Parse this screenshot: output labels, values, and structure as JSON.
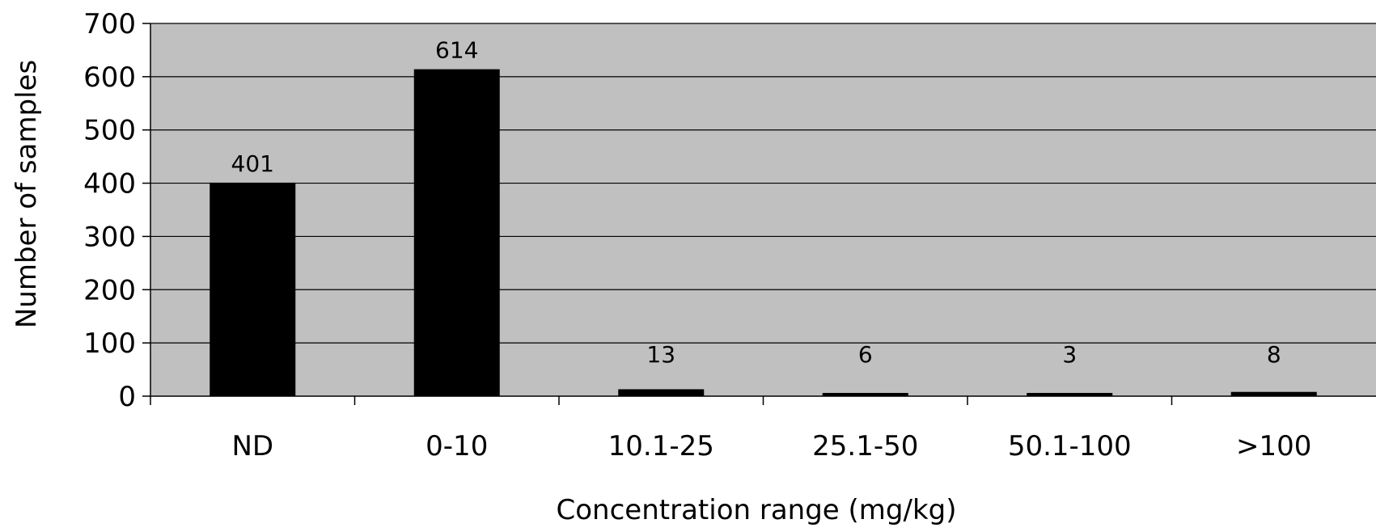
{
  "chart_data": {
    "type": "bar",
    "title": "",
    "xlabel": "Concentration range (mg/kg)",
    "ylabel": "Number of samples",
    "categories": [
      "ND",
      "0-10",
      "10.1-25",
      "25.1-50",
      "50.1-100",
      ">100"
    ],
    "values": [
      401,
      614,
      13,
      6,
      3,
      8
    ],
    "data_labels": [
      "401",
      "614",
      "13",
      "6",
      "3",
      "8"
    ],
    "ylim": [
      0,
      700
    ],
    "yticks": [
      0,
      100,
      200,
      300,
      400,
      500,
      600,
      700
    ],
    "grid": true,
    "legend": "none",
    "colors": {
      "plot_background": "#c0c0c0",
      "bar": "#000000",
      "gridline": "#000000"
    }
  }
}
